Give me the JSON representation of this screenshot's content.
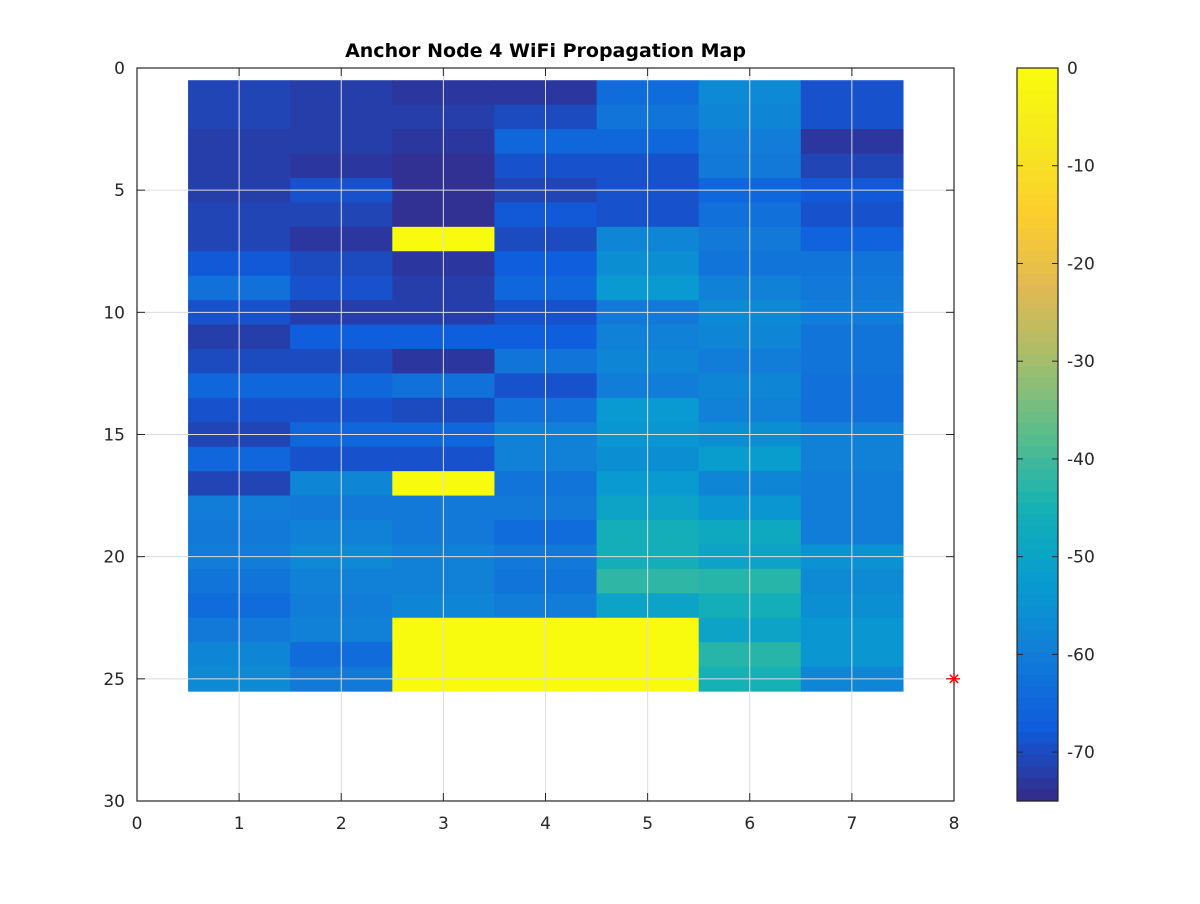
{
  "chart_data": {
    "type": "heatmap",
    "title": "Anchor Node 4 WiFi Propagation Map",
    "xlabel": "",
    "ylabel": "",
    "xlim": [
      0,
      8
    ],
    "ylim": [
      0,
      30
    ],
    "y_reversed": true,
    "grid": true,
    "x_ticks": [
      "0",
      "1",
      "2",
      "3",
      "4",
      "5",
      "6",
      "7",
      "8"
    ],
    "y_ticks": [
      "0",
      "5",
      "10",
      "15",
      "20",
      "25",
      "30"
    ],
    "colormap": "parula",
    "colorbar": {
      "placement": "right",
      "range": [
        -75,
        0
      ],
      "ticks": [
        "0",
        "-10",
        "-20",
        "-30",
        "-40",
        "-50",
        "-60",
        "-70"
      ]
    },
    "columns": [
      1,
      2,
      3,
      4,
      5,
      6,
      7
    ],
    "rows": [
      1,
      2,
      3,
      4,
      5,
      6,
      7,
      8,
      9,
      10,
      11,
      12,
      13,
      14,
      15,
      16,
      17,
      18,
      19,
      20,
      21,
      22,
      23,
      24,
      25
    ],
    "values": [
      [
        -71,
        -72,
        -73,
        -73,
        -64,
        -57,
        -69
      ],
      [
        -71,
        -72,
        -72,
        -70,
        -62,
        -58,
        -69
      ],
      [
        -72,
        -72,
        -73,
        -65,
        -65,
        -60,
        -73
      ],
      [
        -72,
        -73,
        -74,
        -69,
        -69,
        -61,
        -71
      ],
      [
        -72,
        -69,
        -74,
        -71,
        -69,
        -65,
        -68
      ],
      [
        -71,
        -71,
        -74,
        -68,
        -69,
        -63,
        -69
      ],
      [
        -71,
        -73,
        0,
        -70,
        -58,
        -61,
        -66
      ],
      [
        -68,
        -70,
        -73,
        -67,
        -56,
        -62,
        -62
      ],
      [
        -63,
        -69,
        -72,
        -65,
        -53,
        -59,
        -61
      ],
      [
        -69,
        -72,
        -72,
        -69,
        -61,
        -57,
        -60
      ],
      [
        -72,
        -67,
        -67,
        -67,
        -59,
        -58,
        -62
      ],
      [
        -70,
        -70,
        -73,
        -62,
        -58,
        -60,
        -62
      ],
      [
        -65,
        -65,
        -63,
        -69,
        -60,
        -58,
        -63
      ],
      [
        -69,
        -69,
        -70,
        -63,
        -53,
        -59,
        -63
      ],
      [
        -71,
        -65,
        -65,
        -59,
        -54,
        -56,
        -59
      ],
      [
        -65,
        -69,
        -69,
        -59,
        -56,
        -52,
        -59
      ],
      [
        -71,
        -58,
        0,
        -62,
        -53,
        -58,
        -60
      ],
      [
        -60,
        -61,
        -61,
        -61,
        -50,
        -54,
        -60
      ],
      [
        -61,
        -59,
        -61,
        -64,
        -46,
        -48,
        -60
      ],
      [
        -60,
        -57,
        -59,
        -61,
        -46,
        -50,
        -55
      ],
      [
        -62,
        -59,
        -59,
        -62,
        -42,
        -43,
        -57
      ],
      [
        -64,
        -60,
        -58,
        -60,
        -50,
        -46,
        -56
      ],
      [
        -61,
        -59,
        0,
        0,
        0,
        -50,
        -54
      ],
      [
        -58,
        -64,
        0,
        0,
        0,
        -43,
        -54
      ],
      [
        -57,
        -61,
        0,
        0,
        0,
        -45,
        -58
      ]
    ],
    "annotations": [
      {
        "type": "marker",
        "symbol": "*",
        "color": "#ff0000",
        "x": 8,
        "y": 25
      }
    ]
  }
}
